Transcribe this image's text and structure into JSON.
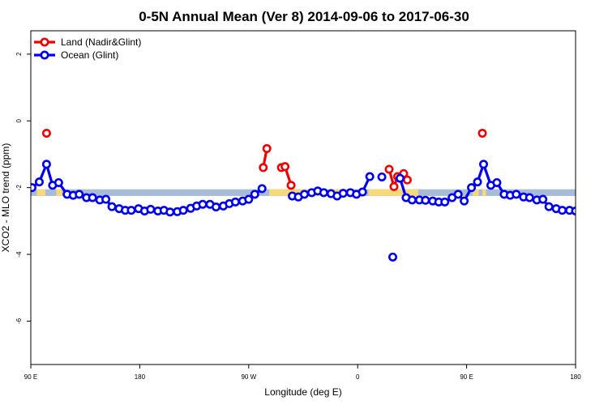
{
  "chart_data": {
    "type": "line",
    "title": "0-5N Annual Mean (Ver 8)   2014-09-06 to 2017-06-30",
    "xlabel": "Longitude (deg E)",
    "ylabel": "XCO2 - MLO trend (ppm)",
    "x_ticks": [
      {
        "x": 90,
        "label": "90 E"
      },
      {
        "x": 180,
        "label": "180"
      },
      {
        "x": 270,
        "label": "90 W"
      },
      {
        "x": 360,
        "label": "0"
      },
      {
        "x": 450,
        "label": "90 E"
      },
      {
        "x": 540,
        "label": "180"
      }
    ],
    "y_ticks": [
      -6,
      -4,
      -2,
      0,
      2
    ],
    "xlim": [
      90,
      540
    ],
    "ylim": [
      -7.3,
      2.7
    ],
    "band": {
      "y_min": -2.25,
      "y_max": -2.05,
      "color_default": "#a8bcd8",
      "color_land": "#f9d77c"
    },
    "land_bands": [
      [
        95,
        102
      ],
      [
        111,
        116
      ],
      [
        287,
        353
      ],
      [
        369,
        410
      ],
      [
        455,
        460
      ],
      [
        463,
        466
      ]
    ],
    "legend": {
      "position": "top-left"
    },
    "series": [
      {
        "name": "Land (Nadir&Glint)",
        "color": "#ee0000",
        "segments": [
          [
            [
              103,
              -0.37
            ]
          ],
          [
            [
              282,
              -1.4
            ],
            [
              285,
              -0.83
            ]
          ],
          [
            [
              297,
              -1.4
            ],
            [
              300,
              -1.37
            ],
            [
              305,
              -1.93
            ]
          ],
          [
            [
              386,
              -1.45
            ],
            [
              390,
              -1.97
            ],
            [
              393,
              -1.67
            ],
            [
              398,
              -1.58
            ],
            [
              401,
              -1.77
            ]
          ],
          [
            [
              463,
              -0.37
            ]
          ]
        ]
      },
      {
        "name": "Ocean (Glint)",
        "color": "#0000ee",
        "segments": [
          [
            [
              91,
              -2.0
            ],
            [
              97,
              -1.83
            ],
            [
              103,
              -1.3
            ],
            [
              108,
              -1.93
            ],
            [
              113,
              -1.85
            ],
            [
              120,
              -2.2
            ],
            [
              125,
              -2.23
            ],
            [
              130,
              -2.2
            ],
            [
              136,
              -2.3
            ],
            [
              141,
              -2.3
            ],
            [
              147,
              -2.37
            ],
            [
              152,
              -2.35
            ],
            [
              157,
              -2.57
            ],
            [
              163,
              -2.63
            ],
            [
              168,
              -2.68
            ],
            [
              173,
              -2.68
            ],
            [
              179,
              -2.63
            ],
            [
              184,
              -2.7
            ],
            [
              189,
              -2.65
            ],
            [
              195,
              -2.7
            ],
            [
              200,
              -2.68
            ],
            [
              205,
              -2.73
            ],
            [
              211,
              -2.72
            ],
            [
              216,
              -2.68
            ],
            [
              222,
              -2.62
            ],
            [
              227,
              -2.55
            ],
            [
              232,
              -2.5
            ],
            [
              238,
              -2.5
            ],
            [
              243,
              -2.58
            ],
            [
              249,
              -2.55
            ],
            [
              254,
              -2.48
            ],
            [
              259,
              -2.43
            ],
            [
              265,
              -2.4
            ],
            [
              270,
              -2.35
            ],
            [
              275,
              -2.2
            ],
            [
              281,
              -2.03
            ]
          ],
          [
            [
              306,
              -2.25
            ],
            [
              311,
              -2.28
            ],
            [
              316,
              -2.2
            ],
            [
              322,
              -2.15
            ],
            [
              327,
              -2.1
            ],
            [
              332,
              -2.15
            ],
            [
              338,
              -2.18
            ],
            [
              343,
              -2.25
            ],
            [
              348,
              -2.17
            ],
            [
              354,
              -2.15
            ],
            [
              359,
              -2.2
            ],
            [
              364,
              -2.13
            ],
            [
              370,
              -1.67
            ]
          ],
          [
            [
              380,
              -1.68
            ]
          ],
          [
            [
              389,
              -4.08
            ]
          ],
          [
            [
              395,
              -1.72
            ],
            [
              400,
              -2.3
            ],
            [
              405,
              -2.37
            ],
            [
              411,
              -2.37
            ],
            [
              416,
              -2.38
            ],
            [
              422,
              -2.4
            ],
            [
              427,
              -2.43
            ],
            [
              432,
              -2.43
            ],
            [
              438,
              -2.3
            ],
            [
              443,
              -2.2
            ],
            [
              448,
              -2.4
            ],
            [
              454,
              -2.0
            ],
            [
              459,
              -1.83
            ],
            [
              464,
              -1.3
            ],
            [
              470,
              -1.93
            ],
            [
              475,
              -1.85
            ],
            [
              481,
              -2.2
            ],
            [
              486,
              -2.23
            ],
            [
              491,
              -2.2
            ],
            [
              497,
              -2.28
            ],
            [
              502,
              -2.3
            ],
            [
              508,
              -2.37
            ],
            [
              513,
              -2.35
            ],
            [
              518,
              -2.57
            ],
            [
              524,
              -2.63
            ],
            [
              529,
              -2.68
            ],
            [
              535,
              -2.68
            ],
            [
              540,
              -2.7
            ]
          ]
        ]
      }
    ]
  }
}
